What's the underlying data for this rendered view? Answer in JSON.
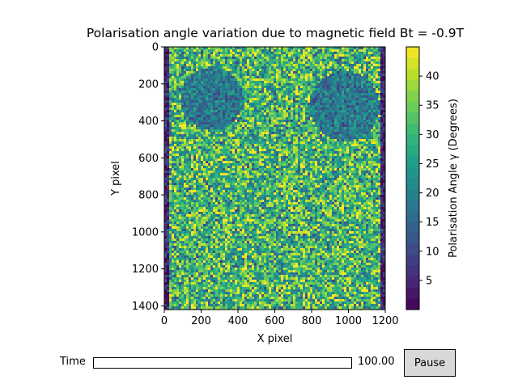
{
  "chart_data": {
    "type": "heatmap",
    "title": "Polarisation angle variation due to magnetic field Bt = -0.9T",
    "xlabel": "X pixel",
    "ylabel": "Y pixel",
    "xlim": [
      0,
      1200
    ],
    "ylim": [
      1420,
      0
    ],
    "x_ticks": [
      0,
      200,
      400,
      600,
      800,
      1000,
      1200
    ],
    "y_ticks": [
      0,
      200,
      400,
      600,
      800,
      1000,
      1200,
      1400
    ],
    "colorbar": {
      "label": "Polarisation Angle γ (Degrees)",
      "range": [
        0,
        45
      ],
      "ticks": [
        5,
        10,
        15,
        20,
        25,
        30,
        35,
        40
      ],
      "colormap": "viridis"
    },
    "features": [
      {
        "shape": "circle",
        "cx": 260,
        "cy": 280,
        "r": 170,
        "mean_value": 18
      },
      {
        "shape": "circle",
        "cx": 980,
        "cy": 320,
        "r": 190,
        "mean_value": 18
      },
      {
        "shape": "edge-strip",
        "x_range": [
          0,
          20
        ],
        "mean_value": 5
      },
      {
        "shape": "edge-strip",
        "x_range": [
          1180,
          1200
        ],
        "mean_value": 5
      }
    ],
    "background_mean_value": 30
  },
  "controls": {
    "time_label": "Time",
    "time_value": "100.00",
    "time_fraction": 0,
    "pause_label": "Pause"
  },
  "colors": {
    "slider_fill": "#1f77b4",
    "button_bg": "#d9d9d9"
  }
}
